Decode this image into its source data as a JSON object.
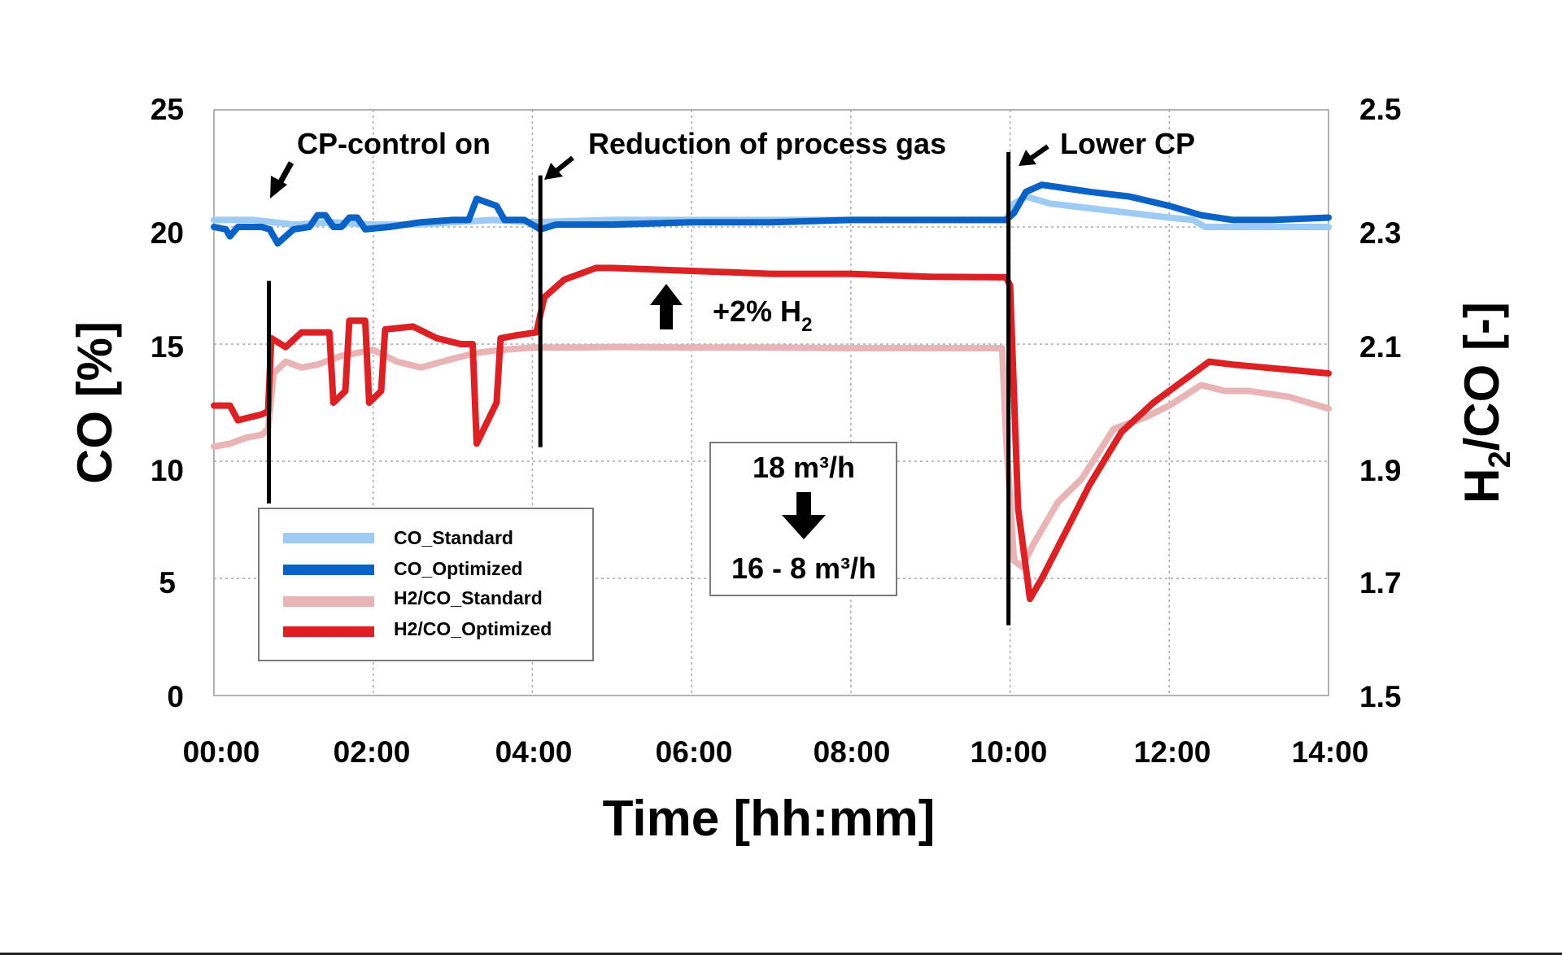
{
  "chart_data": {
    "type": "line",
    "title": "",
    "xlabel": "Time [hh:mm]",
    "ylabel": "CO [%]",
    "y2label": "H2/CO [-]",
    "xlim_hours": [
      0,
      14
    ],
    "ylim": [
      0,
      25
    ],
    "y2lim": [
      1.5,
      2.5
    ],
    "grid": true,
    "legend_position": "bottom-left",
    "x_ticks": [
      "00:00",
      "02:00",
      "04:00",
      "06:00",
      "08:00",
      "10:00",
      "12:00",
      "14:00"
    ],
    "y_ticks": [
      "0",
      "5",
      "10",
      "15",
      "20",
      "25"
    ],
    "y2_ticks": [
      "1.5",
      "1.7",
      "1.9",
      "2.1",
      "2.3",
      "2.5"
    ],
    "series": [
      {
        "name": "CO_Standard",
        "axis": "left",
        "color": "#9ecbf4",
        "x": [
          0,
          0.5,
          1.0,
          1.5,
          2.0,
          2.5,
          3.0,
          3.5,
          4.0,
          5.0,
          6.0,
          7.0,
          8.0,
          9.0,
          9.95,
          10.05,
          10.2,
          10.5,
          11.0,
          11.5,
          12.0,
          12.3,
          12.45,
          13.0,
          13.5,
          14.0
        ],
        "y": [
          20.3,
          20.3,
          20.1,
          20.2,
          20.1,
          20.1,
          20.2,
          20.3,
          20.2,
          20.3,
          20.3,
          20.3,
          20.3,
          20.3,
          20.3,
          21.0,
          21.3,
          21.0,
          20.8,
          20.6,
          20.4,
          20.3,
          20.0,
          20.0,
          20.0,
          20.0
        ]
      },
      {
        "name": "CO_Optimized",
        "axis": "left",
        "color": "#0a62c6",
        "x": [
          0,
          0.15,
          0.2,
          0.3,
          0.6,
          0.7,
          0.8,
          1.0,
          1.2,
          1.3,
          1.4,
          1.5,
          1.6,
          1.7,
          1.8,
          1.9,
          2.2,
          2.6,
          3.0,
          3.2,
          3.3,
          3.55,
          3.65,
          3.9,
          4.1,
          4.3,
          5.0,
          6.0,
          7.0,
          8.0,
          9.0,
          9.95,
          10.05,
          10.2,
          10.4,
          10.6,
          11.0,
          11.5,
          12.0,
          12.4,
          12.8,
          13.3,
          14.0
        ],
        "y": [
          20.0,
          19.9,
          19.6,
          20.0,
          20.0,
          19.9,
          19.3,
          19.9,
          20.0,
          20.5,
          20.5,
          20.0,
          20.0,
          20.4,
          20.4,
          19.9,
          20.0,
          20.2,
          20.3,
          20.3,
          21.2,
          20.9,
          20.3,
          20.3,
          19.9,
          20.1,
          20.1,
          20.2,
          20.2,
          20.3,
          20.3,
          20.3,
          20.6,
          21.5,
          21.8,
          21.7,
          21.5,
          21.3,
          20.9,
          20.5,
          20.3,
          20.3,
          20.4
        ]
      },
      {
        "name": "H2/CO_Standard",
        "axis": "right",
        "color": "#e8b4b6",
        "x": [
          0,
          0.2,
          0.4,
          0.6,
          0.68,
          0.75,
          0.9,
          1.1,
          1.3,
          1.6,
          2.0,
          2.3,
          2.6,
          3.0,
          3.3,
          3.6,
          4.0,
          4.5,
          5.0,
          6.0,
          7.0,
          8.0,
          9.0,
          9.9,
          9.95,
          10.05,
          10.15,
          10.3,
          10.6,
          10.9,
          11.3,
          11.7,
          12.0,
          12.4,
          12.7,
          13.0,
          13.5,
          14.0
        ],
        "y": [
          1.925,
          1.93,
          1.94,
          1.945,
          1.955,
          2.05,
          2.07,
          2.06,
          2.065,
          2.08,
          2.09,
          2.07,
          2.06,
          2.075,
          2.085,
          2.09,
          2.094,
          2.094,
          2.095,
          2.094,
          2.094,
          2.093,
          2.093,
          2.093,
          1.94,
          1.73,
          1.72,
          1.76,
          1.83,
          1.87,
          1.955,
          1.975,
          1.995,
          2.03,
          2.02,
          2.02,
          2.01,
          1.99
        ]
      },
      {
        "name": "H2/CO_Optimized",
        "axis": "right",
        "color": "#dc2125",
        "x": [
          0,
          0.2,
          0.3,
          0.45,
          0.6,
          0.68,
          0.72,
          0.9,
          1.1,
          1.3,
          1.45,
          1.5,
          1.65,
          1.7,
          1.9,
          1.95,
          2.1,
          2.15,
          2.5,
          2.8,
          3.1,
          3.25,
          3.3,
          3.55,
          3.6,
          3.8,
          4.05,
          4.15,
          4.4,
          4.8,
          5.0,
          6.0,
          7.0,
          8.0,
          9.0,
          9.95,
          10.0,
          10.1,
          10.25,
          10.4,
          10.7,
          11.0,
          11.4,
          11.8,
          12.2,
          12.5,
          12.8,
          13.2,
          13.6,
          14.0
        ],
        "y": [
          1.995,
          1.995,
          1.97,
          1.975,
          1.98,
          1.985,
          2.11,
          2.095,
          2.12,
          2.12,
          2.12,
          2.0,
          2.02,
          2.14,
          2.14,
          2.0,
          2.02,
          2.125,
          2.13,
          2.11,
          2.1,
          2.1,
          1.93,
          2.0,
          2.11,
          2.115,
          2.12,
          2.18,
          2.21,
          2.23,
          2.23,
          2.225,
          2.22,
          2.22,
          2.215,
          2.214,
          2.2,
          1.82,
          1.665,
          1.7,
          1.78,
          1.86,
          1.95,
          2.0,
          2.04,
          2.07,
          2.065,
          2.06,
          2.055,
          2.05
        ]
      }
    ],
    "event_lines": [
      {
        "label": "CP-control on",
        "x_hours": 0.69
      },
      {
        "label": "Reduction of process gas",
        "x_hours": 4.1
      },
      {
        "label": "Lower CP",
        "x_hours": 9.98
      }
    ],
    "annotations": {
      "h2_increase": {
        "text": "+2% H",
        "subscript": "2"
      },
      "flow_box": {
        "top": "18 m³/h",
        "bottom": "16 - 8 m³/h"
      }
    }
  }
}
